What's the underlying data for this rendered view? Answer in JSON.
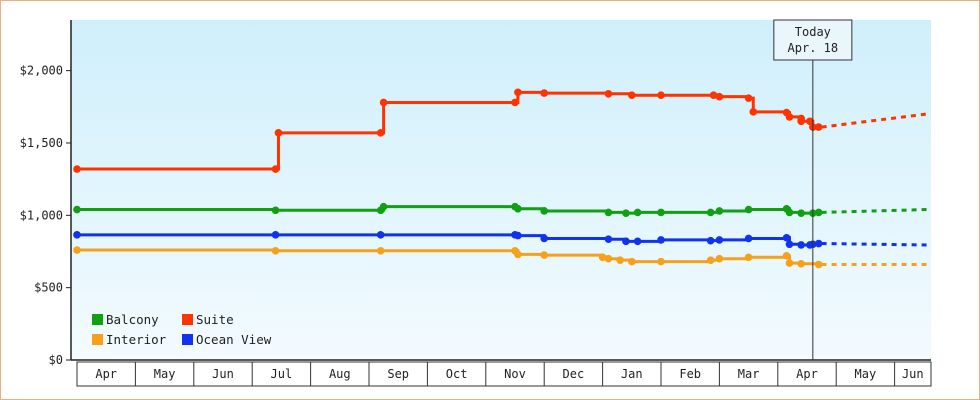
{
  "chart_data": {
    "type": "line",
    "y_ticks": [
      "$0",
      "$500",
      "$1,000",
      "$1,500",
      "$2,000"
    ],
    "ylim": [
      0,
      2350
    ],
    "months": [
      "Apr",
      "May",
      "Jun",
      "Jul",
      "Aug",
      "Sep",
      "Oct",
      "Nov",
      "Dec",
      "Jan",
      "Feb",
      "Mar",
      "Apr",
      "May",
      "Jun"
    ],
    "today_label": [
      "Today",
      "Apr. 18"
    ],
    "today_x": 12.6,
    "series": [
      {
        "name": "Suite",
        "color": "#ff3300",
        "points": [
          [
            0,
            1320
          ],
          [
            3.4,
            1320
          ],
          [
            3.45,
            1570
          ],
          [
            5.2,
            1570
          ],
          [
            5.25,
            1780
          ],
          [
            7.5,
            1780
          ],
          [
            7.55,
            1850
          ],
          [
            8.0,
            1845
          ],
          [
            9.1,
            1840
          ],
          [
            9.5,
            1830
          ],
          [
            10.0,
            1830
          ],
          [
            10.9,
            1830
          ],
          [
            11.0,
            1820
          ],
          [
            11.5,
            1810
          ],
          [
            11.58,
            1715
          ],
          [
            12.15,
            1710
          ],
          [
            12.2,
            1680
          ],
          [
            12.4,
            1670
          ],
          [
            12.4,
            1650
          ],
          [
            12.55,
            1650
          ],
          [
            12.6,
            1610
          ],
          [
            12.7,
            1610
          ]
        ],
        "forecast": [
          [
            12.75,
            1610
          ],
          [
            14.55,
            1700
          ]
        ]
      },
      {
        "name": "Balcony",
        "color": "#11a011",
        "points": [
          [
            0,
            1040
          ],
          [
            3.4,
            1035
          ],
          [
            5.2,
            1035
          ],
          [
            5.25,
            1060
          ],
          [
            7.5,
            1060
          ],
          [
            7.55,
            1045
          ],
          [
            8.0,
            1030
          ],
          [
            9.1,
            1020
          ],
          [
            9.4,
            1015
          ],
          [
            9.6,
            1020
          ],
          [
            10.0,
            1020
          ],
          [
            10.85,
            1020
          ],
          [
            11.0,
            1030
          ],
          [
            11.5,
            1040
          ],
          [
            12.15,
            1045
          ],
          [
            12.2,
            1020
          ],
          [
            12.4,
            1015
          ],
          [
            12.6,
            1015
          ],
          [
            12.7,
            1020
          ]
        ],
        "forecast": [
          [
            12.75,
            1020
          ],
          [
            14.55,
            1040
          ]
        ]
      },
      {
        "name": "Ocean View",
        "color": "#1133ee",
        "points": [
          [
            0,
            865
          ],
          [
            3.4,
            865
          ],
          [
            5.2,
            865
          ],
          [
            7.5,
            865
          ],
          [
            7.55,
            860
          ],
          [
            8.0,
            840
          ],
          [
            9.1,
            835
          ],
          [
            9.4,
            820
          ],
          [
            9.6,
            820
          ],
          [
            10.0,
            830
          ],
          [
            10.85,
            825
          ],
          [
            11.0,
            830
          ],
          [
            11.5,
            840
          ],
          [
            12.15,
            845
          ],
          [
            12.2,
            800
          ],
          [
            12.4,
            795
          ],
          [
            12.55,
            795
          ],
          [
            12.6,
            800
          ],
          [
            12.7,
            805
          ]
        ],
        "forecast": [
          [
            12.75,
            805
          ],
          [
            14.55,
            795
          ]
        ]
      },
      {
        "name": "Interior",
        "color": "#f5a21a",
        "points": [
          [
            0,
            760
          ],
          [
            3.4,
            755
          ],
          [
            5.2,
            755
          ],
          [
            7.5,
            755
          ],
          [
            7.55,
            730
          ],
          [
            8.0,
            725
          ],
          [
            9.0,
            710
          ],
          [
            9.1,
            700
          ],
          [
            9.3,
            690
          ],
          [
            9.5,
            680
          ],
          [
            10.0,
            680
          ],
          [
            10.85,
            690
          ],
          [
            11.0,
            700
          ],
          [
            11.5,
            710
          ],
          [
            12.15,
            720
          ],
          [
            12.2,
            670
          ],
          [
            12.4,
            665
          ],
          [
            12.7,
            660
          ]
        ],
        "forecast": [
          [
            12.75,
            660
          ],
          [
            14.55,
            660
          ]
        ]
      }
    ],
    "legend_order": [
      "Balcony",
      "Suite",
      "Interior",
      "Ocean View"
    ],
    "grid": false,
    "legend_position": "bottom-left"
  }
}
